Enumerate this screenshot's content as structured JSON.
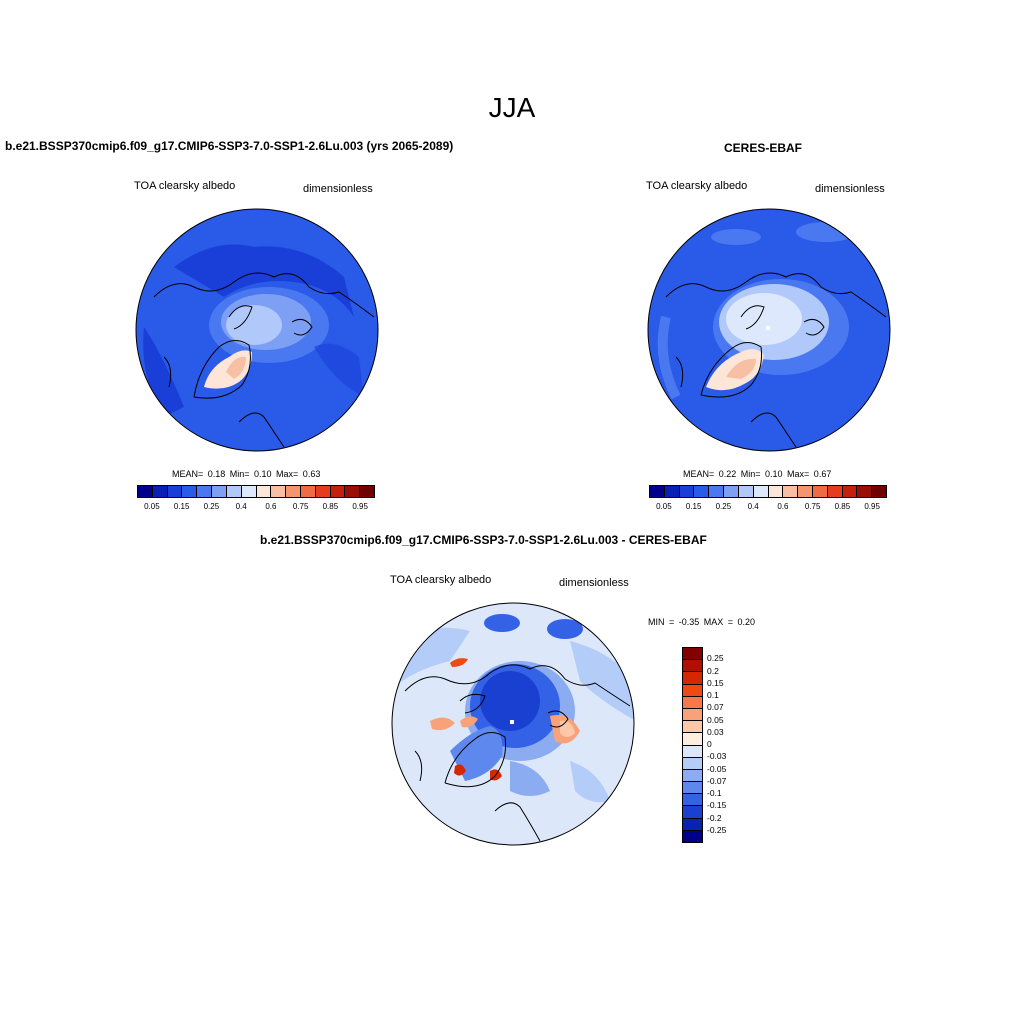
{
  "season": "JJA",
  "panels": {
    "model": {
      "title": "b.e21.BSSP370cmip6.f09_g17.CMIP6-SSP3-7.0-SSP1-2.6Lu.003 (yrs 2065-2089)",
      "left_label": "TOA clearsky albedo",
      "right_label": "dimensionless",
      "stats": "MEAN=   0.18  Min=    0.10  Max=    0.63"
    },
    "obs": {
      "title": "CERES-EBAF",
      "left_label": "TOA clearsky albedo",
      "right_label": "dimensionless",
      "stats": "MEAN=   0.22  Min=    0.10  Max=    0.67"
    },
    "diff": {
      "title": "b.e21.BSSP370cmip6.f09_g17.CMIP6-SSP3-7.0-SSP1-2.6Lu.003 - CERES-EBAF",
      "left_label": "TOA clearsky albedo",
      "right_label": "dimensionless",
      "stats": "MIN =  -0.35 MAX =    0.20"
    }
  },
  "abs_colorbar": {
    "ticks": [
      "0.05",
      "0.15",
      "0.25",
      "0.4",
      "0.6",
      "0.75",
      "0.85",
      "0.95"
    ],
    "colors": [
      "#00008a",
      "#0a1fb4",
      "#1a3fd8",
      "#2a5ae8",
      "#4a78f0",
      "#7ea0f4",
      "#b0c8fa",
      "#dde8fc",
      "#fde6d8",
      "#f7bfa3",
      "#f4956f",
      "#f06a45",
      "#e53c20",
      "#c4200e",
      "#9a0e06",
      "#700000"
    ]
  },
  "diff_colorbar": {
    "ticks": [
      "0.25",
      "0.2",
      "0.15",
      "0.1",
      "0.07",
      "0.05",
      "0.03",
      "0",
      "-0.03",
      "-0.05",
      "-0.07",
      "-0.1",
      "-0.15",
      "-0.2",
      "-0.25"
    ],
    "colors": [
      "#820000",
      "#b01000",
      "#d62800",
      "#f04a12",
      "#f47a4e",
      "#f8a27a",
      "#fcc8a8",
      "#fdeede",
      "#dce8fa",
      "#b4ccf8",
      "#8cacf2",
      "#5e88ee",
      "#3462e6",
      "#1a40d2",
      "#0a22b4",
      "#000088"
    ]
  }
}
